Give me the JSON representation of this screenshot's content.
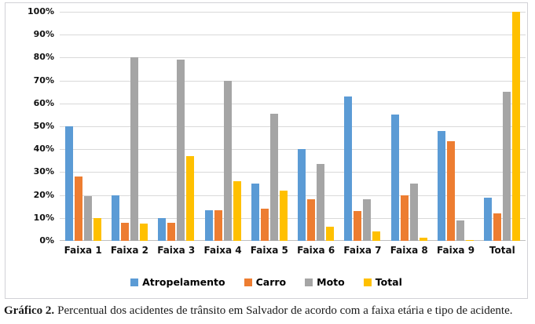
{
  "chart_data": {
    "type": "bar",
    "title": "",
    "categories": [
      "Faixa 1",
      "Faixa 2",
      "Faixa 3",
      "Faixa 4",
      "Faixa 5",
      "Faixa 6",
      "Faixa 7",
      "Faixa 8",
      "Faixa 9",
      "Total"
    ],
    "series": [
      {
        "name": "Atropelamento",
        "color": "#5B9BD5",
        "values": [
          50,
          20,
          10,
          13.5,
          25,
          40,
          63,
          55,
          48,
          19
        ]
      },
      {
        "name": "Carro",
        "color": "#ED7D31",
        "values": [
          28,
          8,
          8,
          13.5,
          14,
          18,
          13,
          20,
          43.5,
          12
        ]
      },
      {
        "name": "Moto",
        "color": "#A5A5A5",
        "values": [
          19.5,
          80,
          79,
          70,
          55.5,
          33.5,
          18,
          25,
          9,
          65
        ]
      },
      {
        "name": "Total",
        "color": "#FFC000",
        "values": [
          10,
          7.5,
          37,
          26,
          22,
          6,
          4,
          1.5,
          0.5,
          100
        ]
      }
    ],
    "ylim": [
      0,
      100
    ],
    "yticks": [
      "100%",
      "90%",
      "80%",
      "70%",
      "60%",
      "50%",
      "40%",
      "30%",
      "20%",
      "10%",
      "0%"
    ],
    "grid": true,
    "legend_position": "bottom",
    "colors": {
      "gridline": "#d9d9d9",
      "axisline": "#bfbfbf"
    }
  },
  "caption": {
    "label": "Gráfico 2.",
    "text": "Percentual dos acidentes de trânsito em Salvador de acordo com a faixa etária e tipo de acidente."
  }
}
